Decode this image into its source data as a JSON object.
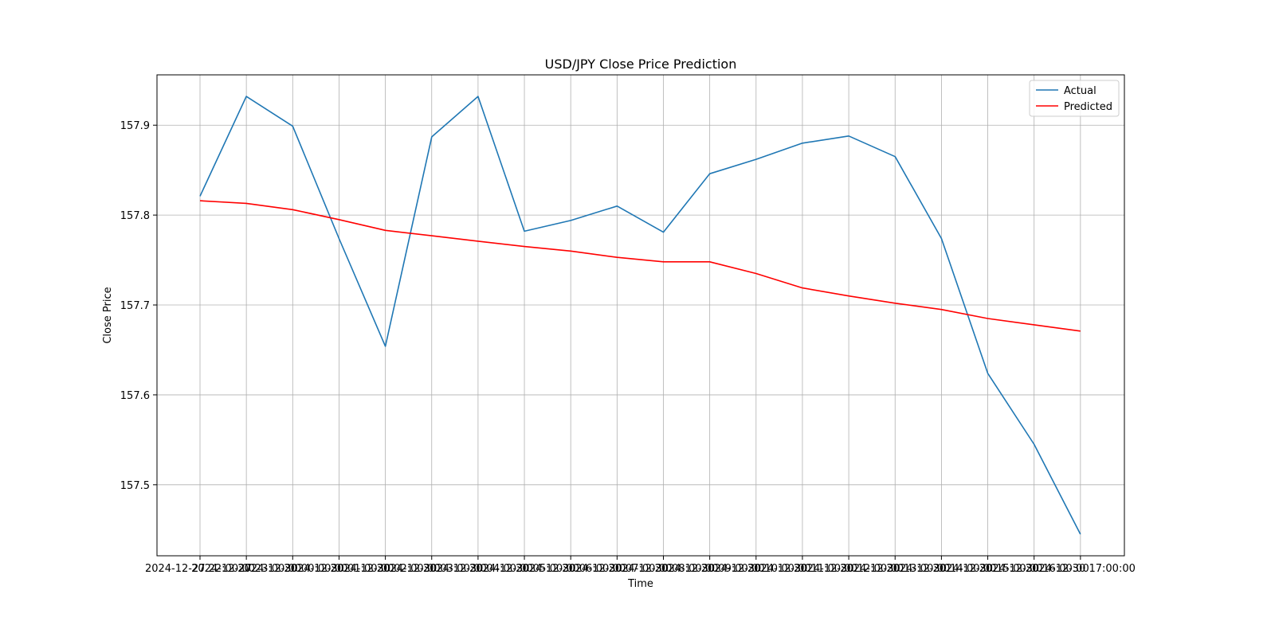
{
  "chart_data": {
    "type": "line",
    "title": "USD/JPY Close Price Prediction",
    "xlabel": "Time",
    "ylabel": "Close Price",
    "x": [
      "2024-12-27 22:00:00",
      "2024-12-27 23:00:00",
      "2024-12-30 00:00:00",
      "2024-12-30 01:00:00",
      "2024-12-30 02:00:00",
      "2024-12-30 03:00:00",
      "2024-12-30 04:00:00",
      "2024-12-30 05:00:00",
      "2024-12-30 06:00:00",
      "2024-12-30 07:00:00",
      "2024-12-30 08:00:00",
      "2024-12-30 09:00:00",
      "2024-12-30 10:00:00",
      "2024-12-30 11:00:00",
      "2024-12-30 12:00:00",
      "2024-12-30 13:00:00",
      "2024-12-30 14:00:00",
      "2024-12-30 15:00:00",
      "2024-12-30 16:00:00",
      "2024-12-30 17:00:00"
    ],
    "last_tick_suffix": "15:00:00",
    "series": [
      {
        "name": "Actual",
        "color": "#1f77b4",
        "values": [
          157.821,
          157.932,
          157.899,
          157.774,
          157.654,
          157.887,
          157.932,
          157.782,
          157.794,
          157.81,
          157.781,
          157.846,
          157.862,
          157.88,
          157.888,
          157.865,
          157.774,
          157.624,
          157.545,
          157.445
        ]
      },
      {
        "name": "Predicted",
        "color": "#ff0000",
        "values": [
          157.816,
          157.813,
          157.806,
          157.795,
          157.783,
          157.777,
          157.771,
          157.765,
          157.76,
          157.753,
          157.748,
          157.748,
          157.735,
          157.719,
          157.71,
          157.702,
          157.695,
          157.685,
          157.678,
          157.671
        ]
      }
    ],
    "yticks": [
      157.5,
      157.6,
      157.7,
      157.8,
      157.9
    ],
    "ylim": [
      157.421,
      157.956
    ],
    "grid": true,
    "legend_position": "top-right"
  }
}
